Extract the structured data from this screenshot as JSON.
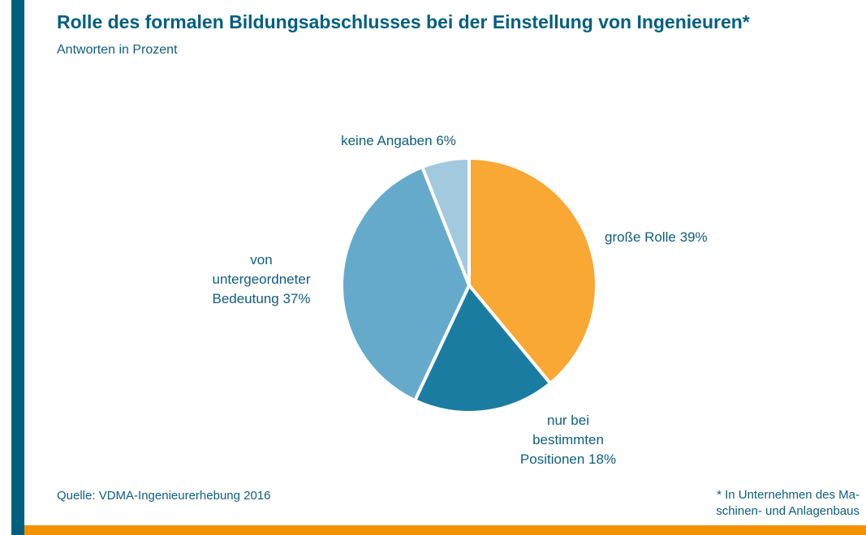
{
  "chart_data": {
    "type": "pie",
    "title": "Rolle des formalen Bildungsabschlusses bei der Einstellung von Ingenieuren*",
    "subtitle": "Antworten in Prozent",
    "categories": [
      "große Rolle",
      "nur bei bestimmten Positionen",
      "von untergeordneter Bedeutung",
      "keine Angaben"
    ],
    "values": [
      39,
      18,
      37,
      6
    ],
    "value_labels": [
      "39%",
      "18%",
      "37%",
      "6%"
    ],
    "colors": [
      "#f9a833",
      "#1b7ca1",
      "#65aaca",
      "#a3c9df"
    ],
    "source": "Quelle: VDMA-Ingenieurerhebung 2016",
    "footnote": [
      "* In Unternehmen des Ma-",
      "schinen- und Anlagenbaus"
    ]
  }
}
